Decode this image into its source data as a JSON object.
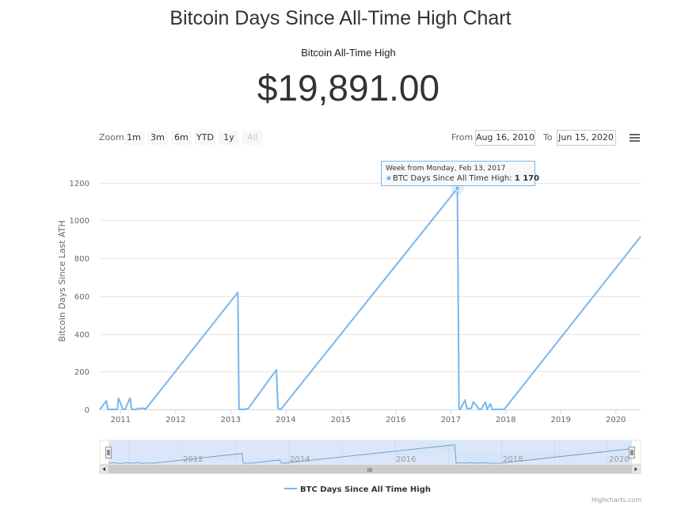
{
  "header": {
    "title": "Bitcoin Days Since All-Time High Chart",
    "subtitle": "Bitcoin All-Time High",
    "price": "$19,891.00"
  },
  "zoom": {
    "label": "Zoom",
    "buttons": [
      "1m",
      "3m",
      "6m",
      "YTD",
      "1y",
      "All"
    ]
  },
  "range": {
    "from_label": "From",
    "from_value": "Aug 16, 2010",
    "to_label": "To",
    "to_value": "Jun 15, 2020"
  },
  "tooltip": {
    "header": "Week from Monday, Feb 13, 2017",
    "series": "BTC Days Since All Time High:",
    "value": "1 170"
  },
  "navigator": {
    "year_labels": [
      "2012",
      "2014",
      "2016",
      "2018",
      "2020"
    ],
    "scroll_grip": "III"
  },
  "legend_label": "BTC Days Since All Time High",
  "credits": "Highcharts.com",
  "colors": {
    "series": "#7cb5ec",
    "grid": "#e6e6e6",
    "navigator_mask": "#dbe7f8"
  },
  "icons": {
    "menu": "hamburger-menu-icon",
    "scroll_left": "arrow-left-icon",
    "scroll_right": "arrow-right-icon"
  },
  "chart_data": {
    "type": "line",
    "title": "Bitcoin Days Since All-Time High Chart",
    "ylabel": "Bitcoin Days Since Last ATH",
    "ylim": [
      0,
      1350
    ],
    "xlim": [
      2010.62,
      2020.45
    ],
    "y_ticks": [
      0,
      200,
      400,
      600,
      800,
      1000,
      1200
    ],
    "x_ticks": [
      2011,
      2012,
      2013,
      2014,
      2015,
      2016,
      2017,
      2018,
      2019,
      2020
    ],
    "grid": true,
    "legend": "bottom-center",
    "series": [
      {
        "name": "BTC Days Since All Time High",
        "x": [
          2010.62,
          2010.74,
          2010.77,
          2010.94,
          2010.96,
          2011.04,
          2011.08,
          2011.17,
          2011.2,
          2011.29,
          2011.31,
          2011.43,
          2011.45,
          2013.13,
          2013.15,
          2013.26,
          2013.32,
          2013.83,
          2013.86,
          2013.91,
          2017.12,
          2017.15,
          2017.17,
          2017.26,
          2017.29,
          2017.37,
          2017.41,
          2017.52,
          2017.55,
          2017.63,
          2017.66,
          2017.72,
          2017.75,
          2017.97,
          2020.45
        ],
        "y": [
          0,
          45,
          0,
          0,
          60,
          0,
          0,
          60,
          0,
          0,
          5,
          5,
          0,
          620,
          0,
          0,
          5,
          210,
          5,
          0,
          1170,
          0,
          0,
          50,
          5,
          5,
          40,
          0,
          0,
          40,
          0,
          30,
          0,
          0,
          915
        ]
      }
    ],
    "tooltip_point": {
      "x": 2017.12,
      "y": 1170
    }
  }
}
